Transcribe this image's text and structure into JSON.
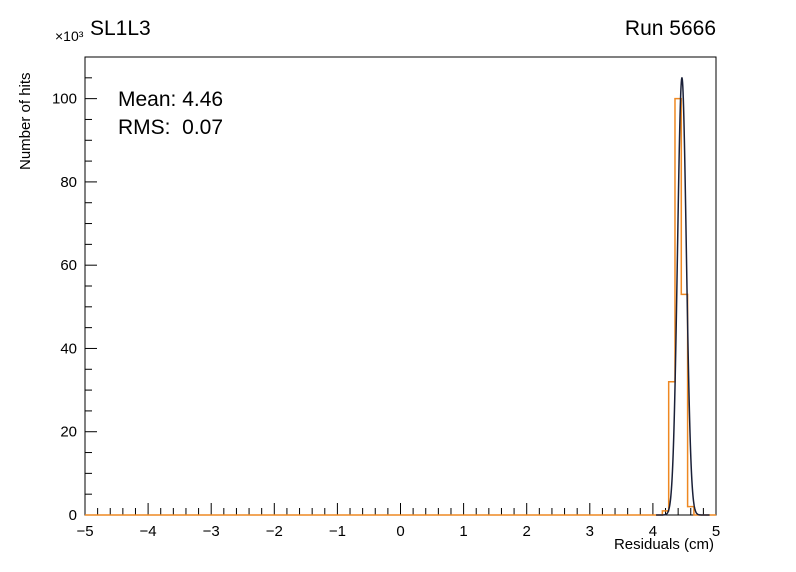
{
  "header": {
    "title": "SL1L3",
    "run_label": "Run 5666"
  },
  "stats": {
    "mean_label": "Mean: 4.46",
    "rms_label": "RMS:  0.07"
  },
  "axes": {
    "y_title": "Number of hits",
    "x_title": "Residuals (cm)",
    "y_scale_label": "×10³"
  },
  "chart_data": {
    "type": "bar",
    "subtype": "histogram-with-gaussian-fit",
    "title": "SL1L3",
    "run": "Run 5666",
    "xlabel": "Residuals (cm)",
    "ylabel": "Number of hits",
    "y_unit_multiplier": 1000,
    "xlim": [
      -5,
      5
    ],
    "ylim": [
      0,
      110
    ],
    "x_ticks": [
      -5,
      -4,
      -3,
      -2,
      -1,
      0,
      1,
      2,
      3,
      4,
      5
    ],
    "y_ticks": [
      0,
      20,
      40,
      60,
      80,
      100
    ],
    "x_minor_step": 0.2,
    "y_minor_step": 5,
    "grid": false,
    "legend": false,
    "frame_color": "#000000",
    "series": [
      {
        "name": "residuals-histogram",
        "style": "step",
        "color": "#ee8822",
        "bin_edges": [
          4.15,
          4.25,
          4.35,
          4.45,
          4.55,
          4.65
        ],
        "counts": [
          1,
          32,
          100,
          53,
          2
        ]
      },
      {
        "name": "gaussian-fit",
        "style": "line",
        "color": "#1a2038",
        "mean": 4.46,
        "sigma": 0.07,
        "amplitude": 105,
        "draw_range": [
          4.05,
          4.9
        ]
      }
    ],
    "annotations": {
      "mean": 4.46,
      "rms": 0.07
    }
  }
}
